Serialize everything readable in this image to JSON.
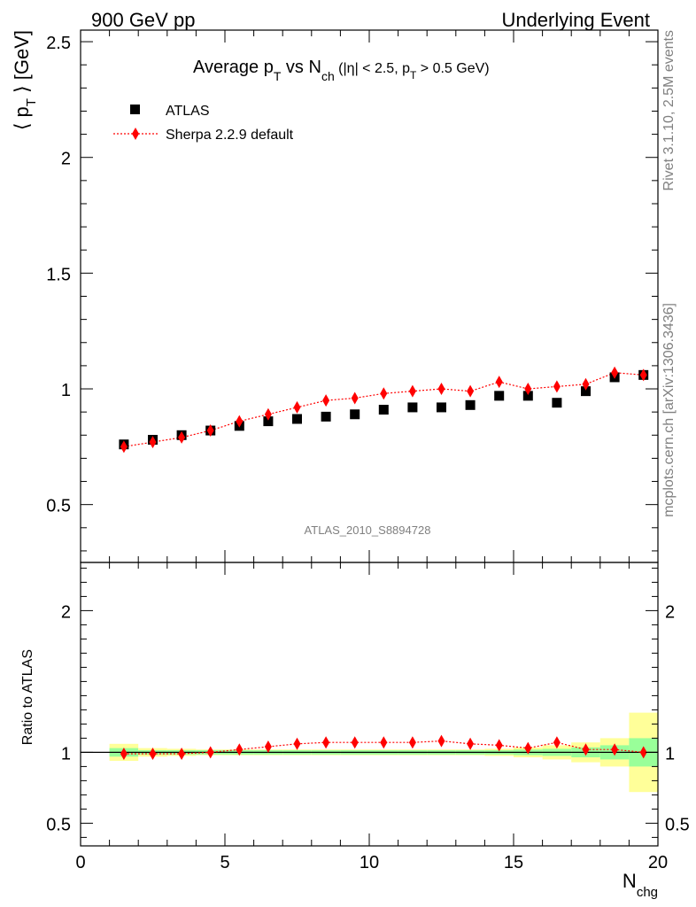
{
  "header": {
    "left": "900 GeV pp",
    "right": "Underlying Event"
  },
  "side": {
    "top": "Rivet 3.1.10,  2.5M events",
    "bottom": "mcplots.cern.ch [arXiv:1306.3436]"
  },
  "watermark": "ATLAS_2010_S8894728",
  "colors": {
    "data": "#000000",
    "mc": "#ff0000",
    "band_inner": "#99ff99",
    "band_outer": "#ffff99"
  },
  "chart_data": [
    {
      "type": "scatter",
      "title_parts": {
        "a": "Average p",
        "a_sub": "T",
        "b": " vs N",
        "b_sub": "ch",
        "c": " (|η| < 2.5, p",
        "c_sub": "T",
        "d": " > 0.5 GeV)"
      },
      "ylabel_parts": {
        "a": "⟨ p",
        "sub": "T",
        "b": " ⟩ [GeV]"
      },
      "xlim": [
        0,
        20
      ],
      "ylim": [
        0.25,
        2.55
      ],
      "yticks": [
        0.5,
        1,
        1.5,
        2,
        2.5
      ],
      "yticklabels": [
        "0.5",
        "1",
        "1.5",
        "2",
        "2.5"
      ],
      "x": [
        1.5,
        2.5,
        3.5,
        4.5,
        5.5,
        6.5,
        7.5,
        8.5,
        9.5,
        10.5,
        11.5,
        12.5,
        13.5,
        14.5,
        15.5,
        16.5,
        17.5,
        18.5,
        19.5
      ],
      "series": [
        {
          "name": "ATLAS",
          "marker": "square",
          "values": [
            0.76,
            0.78,
            0.8,
            0.82,
            0.84,
            0.86,
            0.87,
            0.88,
            0.89,
            0.91,
            0.92,
            0.92,
            0.93,
            0.97,
            0.97,
            0.94,
            0.99,
            1.05,
            1.06
          ]
        },
        {
          "name": "Sherpa 2.2.9 default",
          "marker": "diamond",
          "values": [
            0.75,
            0.77,
            0.79,
            0.82,
            0.86,
            0.89,
            0.92,
            0.95,
            0.96,
            0.98,
            0.99,
            1.0,
            0.99,
            1.03,
            1.0,
            1.01,
            1.02,
            1.07,
            1.06
          ]
        }
      ]
    },
    {
      "type": "line",
      "ylabel": "Ratio to ATLAS",
      "xlabel_parts": {
        "a": "N",
        "sub": "chg"
      },
      "xlim": [
        0,
        20
      ],
      "ylim": [
        0.34,
        2.34
      ],
      "xticks": [
        0,
        5,
        10,
        15,
        20
      ],
      "xticklabels": [
        "0",
        "5",
        "10",
        "15",
        "20"
      ],
      "yticks": [
        0.5,
        1,
        2
      ],
      "yticklabels": [
        "0.5",
        "1",
        "2"
      ],
      "x": [
        1.5,
        2.5,
        3.5,
        4.5,
        5.5,
        6.5,
        7.5,
        8.5,
        9.5,
        10.5,
        11.5,
        12.5,
        13.5,
        14.5,
        15.5,
        16.5,
        17.5,
        18.5,
        19.5
      ],
      "series": [
        {
          "name": "Sherpa 2.2.9 default",
          "values": [
            0.99,
            0.99,
            0.99,
            1.0,
            1.02,
            1.04,
            1.06,
            1.07,
            1.07,
            1.07,
            1.07,
            1.08,
            1.06,
            1.05,
            1.03,
            1.07,
            1.02,
            1.02,
            1.0
          ]
        }
      ],
      "band_inner_halfwidth": [
        0.03,
        0.015,
        0.015,
        0.015,
        0.015,
        0.015,
        0.015,
        0.015,
        0.015,
        0.015,
        0.015,
        0.015,
        0.015,
        0.015,
        0.02,
        0.025,
        0.035,
        0.05,
        0.1
      ],
      "band_outer_halfwidth": [
        0.06,
        0.03,
        0.025,
        0.02,
        0.02,
        0.02,
        0.02,
        0.02,
        0.02,
        0.02,
        0.02,
        0.02,
        0.02,
        0.025,
        0.035,
        0.05,
        0.07,
        0.1,
        0.28
      ]
    }
  ]
}
